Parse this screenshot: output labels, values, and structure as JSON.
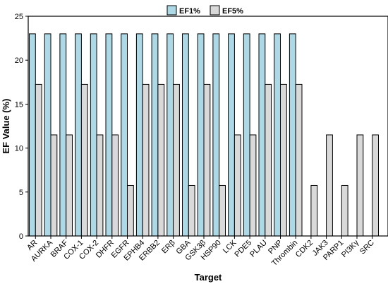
{
  "chart_data": {
    "type": "bar",
    "categories": [
      "AR",
      "AURKA",
      "BRAF",
      "COX-1",
      "COX-2",
      "DHFR",
      "EGFR",
      "EPHB4",
      "ERBB2",
      "ERβ",
      "GBA",
      "GSK3β",
      "HSP90",
      "LCK",
      "PDE5",
      "PLAU",
      "PNP",
      "Thrombin",
      "CDK2",
      "JAK3",
      "PARP1",
      "PI3Kγ",
      "SRC"
    ],
    "series": [
      {
        "name": "EF1%",
        "color": "#add8e6",
        "values": [
          23,
          23,
          23,
          23,
          23,
          23,
          23,
          23,
          23,
          23,
          23,
          23,
          23,
          23,
          23,
          23,
          23,
          23,
          0,
          0,
          0,
          0,
          0
        ]
      },
      {
        "name": "EF5%",
        "color": "#d9d9d9",
        "values": [
          17.25,
          11.5,
          11.5,
          17.25,
          11.5,
          11.5,
          5.75,
          17.25,
          17.25,
          17.25,
          5.75,
          17.25,
          5.75,
          11.5,
          11.5,
          17.25,
          17.25,
          17.25,
          5.75,
          11.5,
          5.75,
          11.5,
          11.5
        ]
      }
    ],
    "xlabel": "Target",
    "ylabel": "EF Value (%)",
    "ylim": [
      0,
      25
    ],
    "yticks": [
      "0",
      "5",
      "10",
      "15",
      "20",
      "25"
    ],
    "legend_position": "top-center",
    "grid": false
  }
}
